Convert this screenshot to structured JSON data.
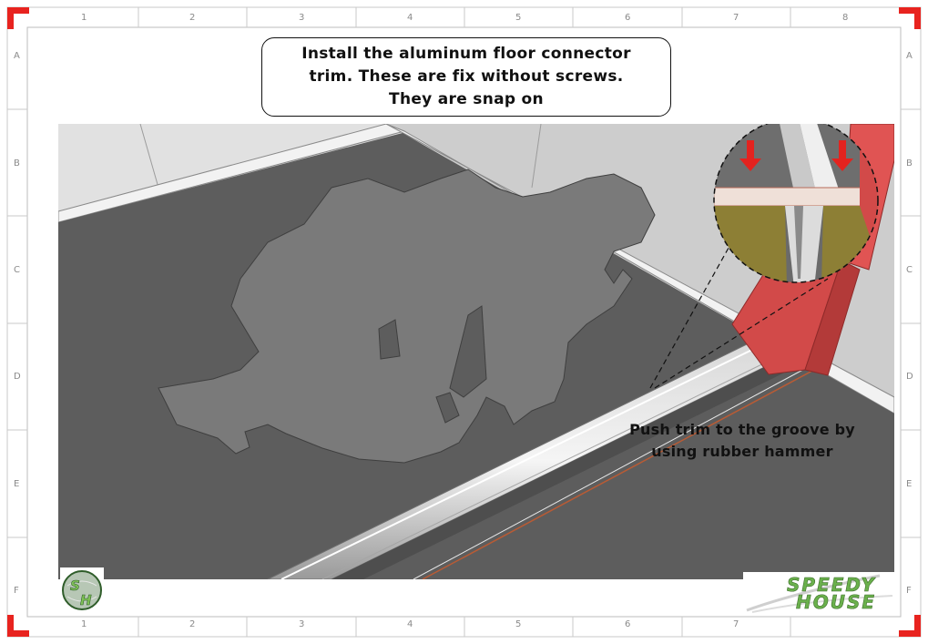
{
  "sheet": {
    "column_labels": [
      "1",
      "2",
      "3",
      "4",
      "5",
      "6",
      "7",
      "8"
    ],
    "row_labels": [
      "A",
      "B",
      "C",
      "D",
      "E",
      "F"
    ],
    "corner_color": "#e8231f"
  },
  "callout": {
    "lines": [
      "Install the aluminum floor connector",
      "trim. These are fix without screws.",
      "They are snap on"
    ]
  },
  "note": {
    "lines": [
      "Push trim to the groove by",
      "using rubber hammer"
    ]
  },
  "logos": {
    "left_letters": [
      "S",
      "H"
    ],
    "right_words": [
      "SPEEDY",
      "HOUSE"
    ],
    "brand_color": "#6ab04c"
  }
}
